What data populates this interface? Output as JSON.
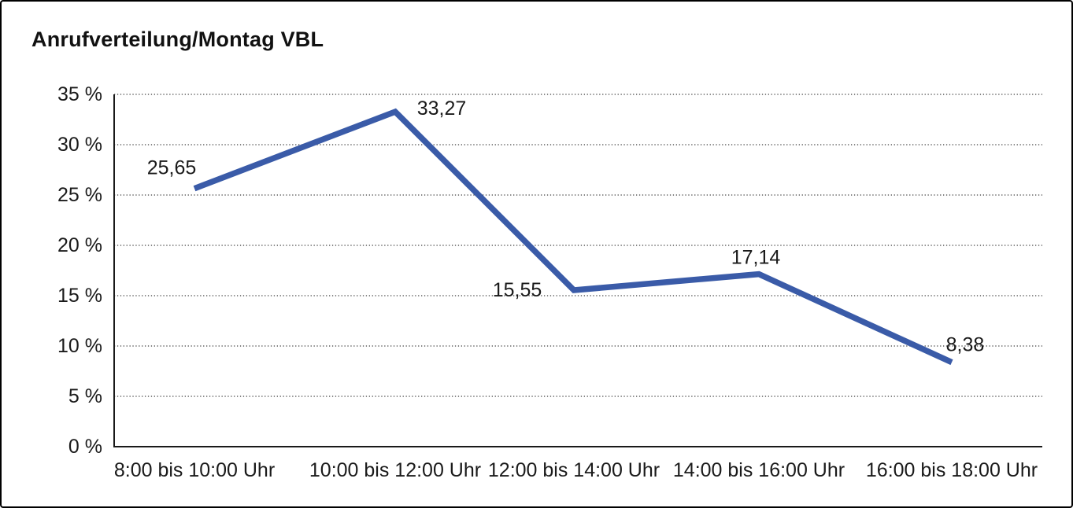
{
  "title": "Anrufverteilung/Montag VBL",
  "chart_data": {
    "type": "line",
    "title": "Anrufverteilung/Montag VBL",
    "categories": [
      "8:00 bis 10:00 Uhr",
      "10:00 bis 12:00 Uhr",
      "12:00 bis 14:00 Uhr",
      "14:00 bis 16:00 Uhr",
      "16:00 bis 18:00 Uhr"
    ],
    "values": [
      25.65,
      33.27,
      15.55,
      17.14,
      8.38
    ],
    "value_labels": [
      "25,65",
      "33,27",
      "15,55",
      "17,14",
      "8,38"
    ],
    "xlabel": "",
    "ylabel": "",
    "ylim": [
      0,
      35
    ],
    "y_tick_step": 5,
    "y_tick_labels": [
      "0 %",
      "5 %",
      "10 %",
      "15 %",
      "20 %",
      "25 %",
      "30 %",
      "35 %"
    ],
    "grid": "dotted-horizontal",
    "legend": "none",
    "line_color": "#3A5BA8",
    "axis_color": "#1a1a1a",
    "grid_color": "#3f3f3f",
    "text_color": "#1a1a1a"
  }
}
